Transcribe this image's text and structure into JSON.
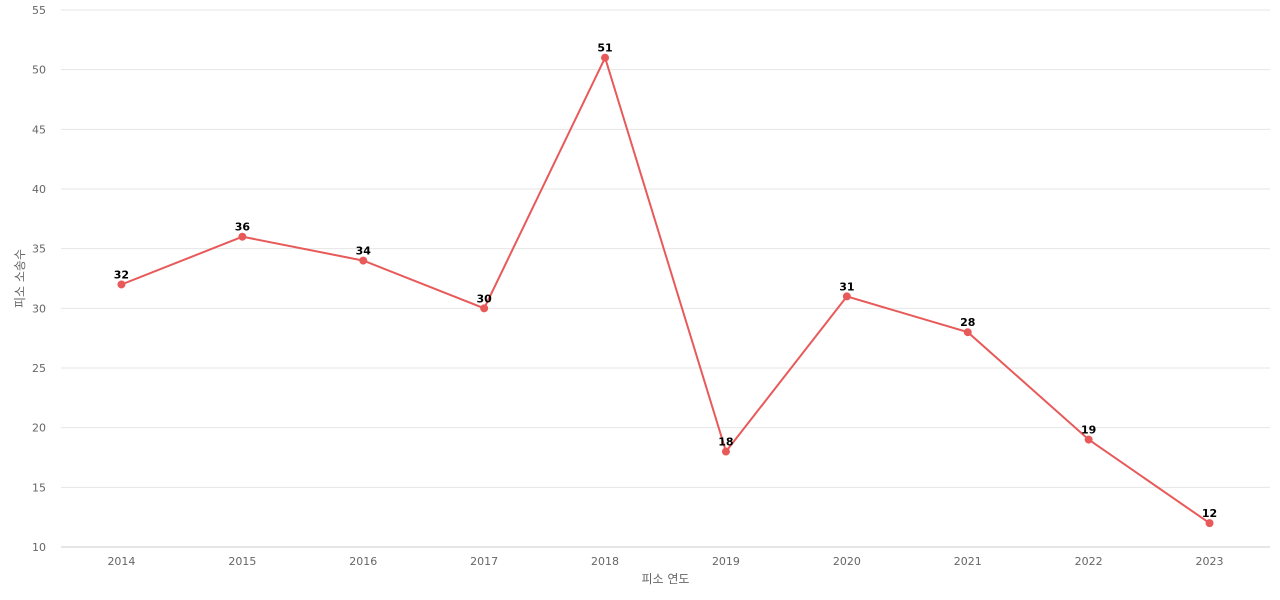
{
  "chart_data": {
    "type": "line",
    "x": [
      "2014",
      "2015",
      "2016",
      "2017",
      "2018",
      "2019",
      "2020",
      "2021",
      "2022",
      "2023"
    ],
    "series": [
      {
        "values": [
          32,
          36,
          34,
          30,
          51,
          18,
          31,
          28,
          19,
          12
        ],
        "color": "#e85a5a"
      }
    ],
    "xlabel": "피소 연도",
    "ylabel": "피소 소송수",
    "ylim": [
      10,
      55
    ],
    "yticks": [
      10,
      15,
      20,
      25,
      30,
      35,
      40,
      45,
      50,
      55
    ],
    "grid": true,
    "data_labels": true,
    "legend": "none"
  }
}
